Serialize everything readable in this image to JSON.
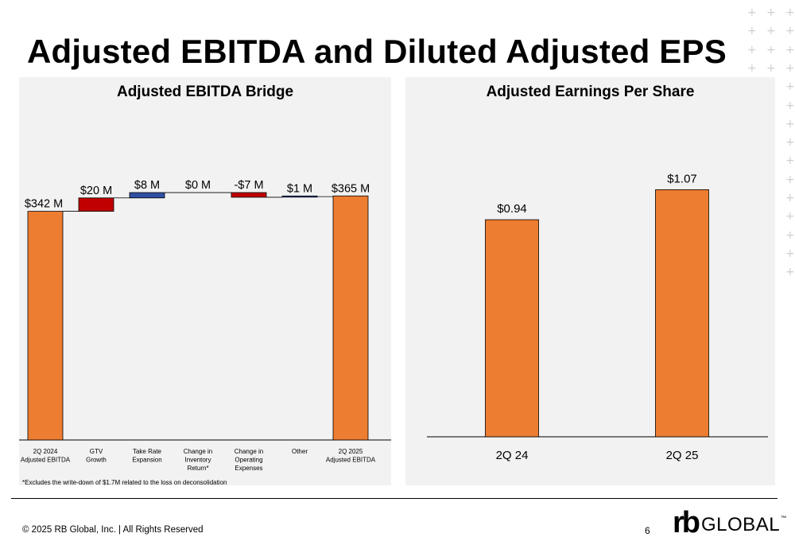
{
  "slide": {
    "title": "Adjusted EBITDA and Diluted Adjusted EPS",
    "footer_copyright": "© 2025 RB Global, Inc. | All Rights Reserved",
    "page_number": "6",
    "logo": {
      "mark": "rb",
      "word": "GLOBAL",
      "tm": "™"
    }
  },
  "colors": {
    "orange": "#ed7d31",
    "red": "#c00000",
    "blue": "#2e4fa3",
    "panel_bg": "#f2f2f2",
    "plus_decoration": "#cfcfcf"
  },
  "chart_data": [
    {
      "type": "bar",
      "subtype": "waterfall",
      "title": "Adjusted EBITDA Bridge",
      "unit": "$ M",
      "categories": [
        "2Q 2024 Adjusted EBITDA",
        "GTV Growth",
        "Take Rate Expansion",
        "Change in Inventory Return*",
        "Change in Operating Expenses",
        "Other",
        "2Q 2025 Adjusted EBITDA"
      ],
      "category_lines": [
        [
          "2Q 2024",
          "Adjusted EBITDA"
        ],
        [
          "GTV",
          "Growth"
        ],
        [
          "Take Rate",
          "Expansion"
        ],
        [
          "Change in",
          "Inventory",
          "Return*"
        ],
        [
          "Change in",
          "Operating",
          "Expenses"
        ],
        [
          "Other"
        ],
        [
          "2Q 2025",
          "Adjusted EBITDA"
        ]
      ],
      "values": [
        342,
        20,
        8,
        0,
        -7,
        1,
        365
      ],
      "bar_kind": [
        "total",
        "delta",
        "delta",
        "delta",
        "delta",
        "delta",
        "total"
      ],
      "data_labels": [
        "$342 M",
        "$20 M",
        "$8 M",
        "$0 M",
        "-$7 M",
        "$1 M",
        "$365 M"
      ],
      "bar_colors": [
        "orange",
        "red",
        "blue",
        "blue",
        "red",
        "blue",
        "orange"
      ],
      "footnote": "*Excludes the write-down of $1.7M related to the loss on deconsolidation",
      "grid": false,
      "legend": "none"
    },
    {
      "type": "bar",
      "title": "Adjusted Earnings Per Share",
      "unit": "$",
      "categories": [
        "2Q 24",
        "2Q 25"
      ],
      "values": [
        0.94,
        1.07
      ],
      "data_labels": [
        "$0.94",
        "$1.07"
      ],
      "bar_colors": [
        "orange",
        "orange"
      ],
      "ylim": [
        0,
        1.2
      ],
      "grid": false,
      "legend": "none"
    }
  ]
}
